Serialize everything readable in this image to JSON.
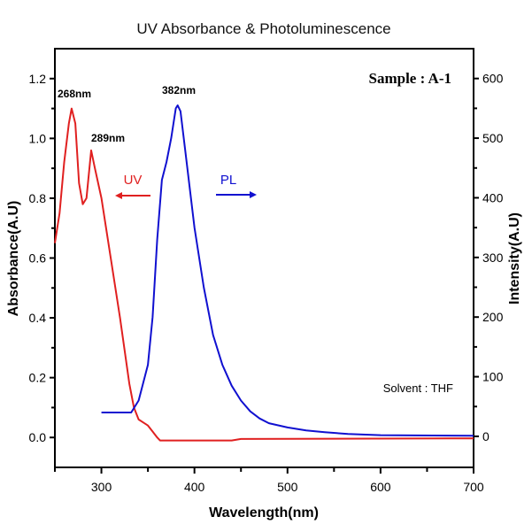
{
  "chart_data": {
    "type": "line",
    "title": "UV Absorbance & Photoluminescence",
    "xlabel": "Wavelength(nm)",
    "ylabel": "Absorbance(A.U)",
    "y2label": "Intensity(A.U)",
    "xlim": [
      250,
      700
    ],
    "ylim": [
      -0.1,
      1.3
    ],
    "y2lim": [
      -52,
      650
    ],
    "xticks": [
      300,
      400,
      500,
      600,
      700
    ],
    "yticks": [
      "0.0",
      "0.2",
      "0.4",
      "0.6",
      "0.8",
      "1.0",
      "1.2"
    ],
    "y2ticks": [
      "0",
      "100",
      "200",
      "300",
      "400",
      "500",
      "600"
    ],
    "grid": false,
    "series": [
      {
        "name": "UV",
        "axis": "left",
        "color": "#e02020",
        "x": [
          250,
          255,
          260,
          265,
          268,
          272,
          276,
          280,
          284,
          289,
          293,
          300,
          310,
          320,
          330,
          335,
          340,
          345,
          350,
          355,
          360,
          363,
          440,
          450,
          700
        ],
        "y": [
          0.65,
          0.75,
          0.92,
          1.05,
          1.1,
          1.05,
          0.85,
          0.78,
          0.8,
          0.96,
          0.9,
          0.8,
          0.6,
          0.4,
          0.18,
          0.1,
          0.06,
          0.05,
          0.04,
          0.02,
          0.0,
          -0.01,
          -0.01,
          -0.005,
          -0.003
        ]
      },
      {
        "name": "PL",
        "axis": "right",
        "color": "#1010d0",
        "x": [
          300,
          332,
          340,
          350,
          355,
          360,
          365,
          370,
          375,
          380,
          382,
          385,
          390,
          400,
          410,
          420,
          430,
          440,
          450,
          460,
          470,
          480,
          500,
          520,
          540,
          565,
          600,
          700
        ],
        "y": [
          40,
          40,
          60,
          120,
          200,
          330,
          430,
          460,
          500,
          550,
          555,
          545,
          480,
          350,
          250,
          170,
          120,
          85,
          60,
          42,
          30,
          22,
          15,
          10,
          7,
          4,
          2,
          1
        ]
      }
    ],
    "annotations": {
      "peak1": "268nm",
      "peak2": "289nm",
      "peak3": "382nm",
      "uv_label": "UV",
      "pl_label": "PL",
      "sample": "Sample : A-1",
      "solvent": "Solvent : THF"
    }
  }
}
